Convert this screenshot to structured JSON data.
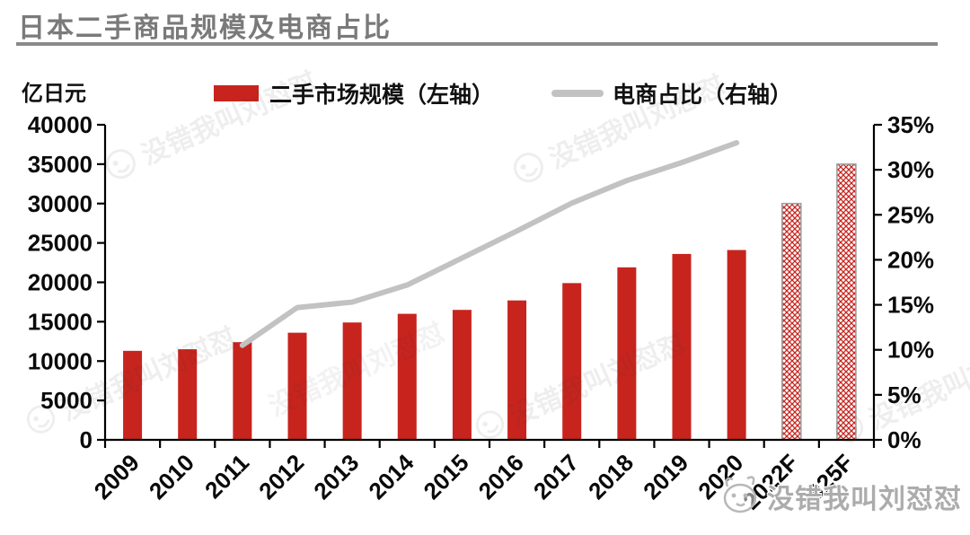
{
  "header": {
    "title": "日本二手商品规模及电商占比"
  },
  "legend": [
    {
      "label": "二手市场规模（左轴）",
      "swatch": "bar-swatch",
      "color": "#C8241E"
    },
    {
      "label": "电商占比（右轴）",
      "swatch": "line-swatch",
      "color": "#C2C2C2"
    }
  ],
  "watermark": {
    "text": "没错我叫刘怼怼",
    "logo": "cartoon-face-icon"
  },
  "chart_data": {
    "type": "bar+line combo",
    "title": "日本二手商品规模及电商占比",
    "categories": [
      "2009",
      "2010",
      "2011",
      "2012",
      "2013",
      "2014",
      "2015",
      "2016",
      "2017",
      "2018",
      "2019",
      "2020",
      "2022F",
      "2025F"
    ],
    "series": [
      {
        "name": "二手市场规模（左轴）",
        "type": "bar",
        "axis": "left",
        "unit": "亿日元",
        "color": "#C8241E",
        "values": [
          11300,
          11500,
          12400,
          13600,
          14900,
          16000,
          16500,
          17700,
          19900,
          21900,
          23600,
          24100,
          30000,
          35000
        ],
        "forecast": [
          false,
          false,
          false,
          false,
          false,
          false,
          false,
          false,
          false,
          false,
          false,
          false,
          true,
          true
        ],
        "forecast_style": "red crosshatch pattern with gray outline"
      },
      {
        "name": "电商占比（右轴）",
        "type": "line",
        "axis": "right",
        "unit": "%",
        "color": "#C2C2C2",
        "values": [
          null,
          null,
          10.5,
          14.7,
          15.3,
          17.2,
          20.2,
          23.2,
          26.3,
          28.8,
          30.8,
          33.0,
          null,
          null
        ]
      }
    ],
    "left_axis": {
      "unit_label": "亿日元",
      "min": 0,
      "max": 40000,
      "step": 5000,
      "ticks": [
        "0",
        "5000",
        "10000",
        "15000",
        "20000",
        "25000",
        "30000",
        "35000",
        "40000"
      ]
    },
    "right_axis": {
      "min": 0,
      "max": 35,
      "step": 5,
      "ticks": [
        "0%",
        "5%",
        "10%",
        "15%",
        "20%",
        "25%",
        "30%",
        "35%"
      ]
    },
    "grid": false,
    "legend_position": "top-center",
    "x_tick_label_rotation": -45
  }
}
